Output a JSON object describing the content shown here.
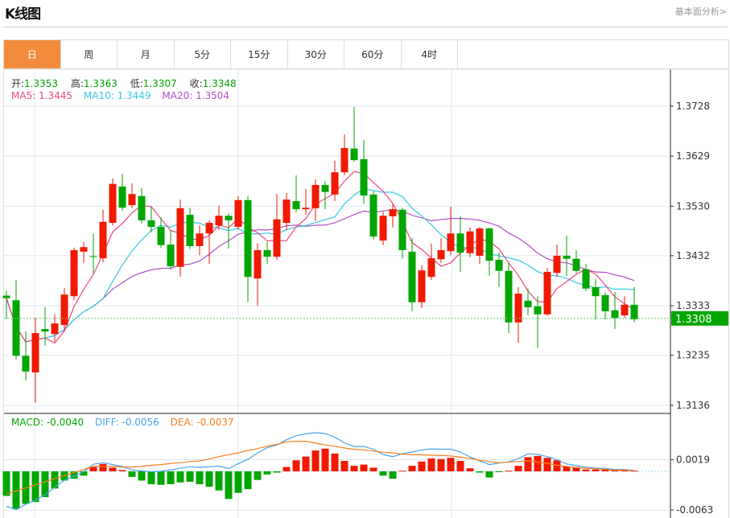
{
  "header": {
    "title": "K线图",
    "link": "基本面分析>"
  },
  "tabs": [
    {
      "label": "日",
      "active": true
    },
    {
      "label": "周"
    },
    {
      "label": "月"
    },
    {
      "label": "5分"
    },
    {
      "label": "15分"
    },
    {
      "label": "30分"
    },
    {
      "label": "60分"
    },
    {
      "label": "4时"
    }
  ],
  "ohlc_info": {
    "open_label": "开:",
    "open": "1.3353",
    "high_label": "高:",
    "high": "1.3363",
    "low_label": "低:",
    "low": "1.3307",
    "close_label": "收:",
    "close": "1.3348"
  },
  "ma_info": {
    "ma5": "MA5: 1.3445",
    "ma10": "MA10: 1.3449",
    "ma20": "MA20: 1.3504"
  },
  "macd_info": {
    "macd": "MACD: -0.0040",
    "diff": "DIFF: -0.0056",
    "dea": "DEA: -0.0037"
  },
  "colors": {
    "up": "#f01a00",
    "down": "#00a600",
    "ma5": "#f0467a",
    "ma10": "#38c8e0",
    "ma20": "#b050c8",
    "diff": "#4aa3f0",
    "dea": "#f57e20",
    "active_tab": "#f28c3c"
  },
  "chart_data": [
    {
      "type": "candlestick",
      "ylim": [
        1.312,
        1.3801
      ],
      "yticks": [
        "1.3728",
        "1.3629",
        "1.3530",
        "1.3432",
        "1.3333",
        "1.3235",
        "1.3136"
      ],
      "current_price": "1.3308",
      "ohlc": [
        [
          1.3353,
          1.3363,
          1.3307,
          1.3348
        ],
        [
          1.3344,
          1.3384,
          1.3227,
          1.3234
        ],
        [
          1.3234,
          1.3282,
          1.3185,
          1.3203
        ],
        [
          1.3201,
          1.3309,
          1.3141,
          1.3279
        ],
        [
          1.3287,
          1.333,
          1.3254,
          1.3282
        ],
        [
          1.3277,
          1.3316,
          1.3262,
          1.3298
        ],
        [
          1.3295,
          1.3368,
          1.3282,
          1.3355
        ],
        [
          1.3352,
          1.3448,
          1.3344,
          1.3443
        ],
        [
          1.344,
          1.3459,
          1.3418,
          1.3449
        ],
        [
          1.3431,
          1.3476,
          1.3397,
          1.343
        ],
        [
          1.3427,
          1.3523,
          1.3419,
          1.3499
        ],
        [
          1.3497,
          1.3585,
          1.3492,
          1.3574
        ],
        [
          1.3569,
          1.3594,
          1.3521,
          1.3527
        ],
        [
          1.3532,
          1.3575,
          1.3526,
          1.3554
        ],
        [
          1.355,
          1.3566,
          1.3496,
          1.3502
        ],
        [
          1.3502,
          1.3529,
          1.3478,
          1.3489
        ],
        [
          1.3489,
          1.3508,
          1.3448,
          1.3453
        ],
        [
          1.3454,
          1.3483,
          1.3405,
          1.3411
        ],
        [
          1.341,
          1.3543,
          1.339,
          1.3526
        ],
        [
          1.3513,
          1.3527,
          1.3445,
          1.3451
        ],
        [
          1.3451,
          1.3492,
          1.3433,
          1.3476
        ],
        [
          1.3476,
          1.3502,
          1.3416,
          1.3497
        ],
        [
          1.3492,
          1.3531,
          1.3483,
          1.3511
        ],
        [
          1.3511,
          1.3516,
          1.3446,
          1.3502
        ],
        [
          1.3489,
          1.355,
          1.3484,
          1.3542
        ],
        [
          1.3542,
          1.355,
          1.334,
          1.339
        ],
        [
          1.3387,
          1.3457,
          1.3333,
          1.3443
        ],
        [
          1.3443,
          1.3459,
          1.3416,
          1.343
        ],
        [
          1.343,
          1.3554,
          1.3424,
          1.3504
        ],
        [
          1.3497,
          1.3556,
          1.3483,
          1.3543
        ],
        [
          1.354,
          1.3591,
          1.3518,
          1.3524
        ],
        [
          1.3524,
          1.3564,
          1.3513,
          1.3527
        ],
        [
          1.3526,
          1.3583,
          1.35,
          1.3572
        ],
        [
          1.3572,
          1.358,
          1.3524,
          1.3558
        ],
        [
          1.3553,
          1.362,
          1.354,
          1.3597
        ],
        [
          1.3597,
          1.3672,
          1.3591,
          1.3645
        ],
        [
          1.3644,
          1.3726,
          1.3618,
          1.3621
        ],
        [
          1.3623,
          1.3661,
          1.3534,
          1.3551
        ],
        [
          1.3553,
          1.3559,
          1.3464,
          1.347
        ],
        [
          1.3462,
          1.3519,
          1.3453,
          1.3511
        ],
        [
          1.351,
          1.3535,
          1.3488,
          1.3524
        ],
        [
          1.3523,
          1.3527,
          1.3426,
          1.3443
        ],
        [
          1.344,
          1.3467,
          1.3322,
          1.334
        ],
        [
          1.334,
          1.3413,
          1.3328,
          1.3403
        ],
        [
          1.339,
          1.3456,
          1.3384,
          1.3427
        ],
        [
          1.3425,
          1.3467,
          1.3418,
          1.3443
        ],
        [
          1.3441,
          1.3529,
          1.3433,
          1.3476
        ],
        [
          1.3476,
          1.351,
          1.34,
          1.3438
        ],
        [
          1.3437,
          1.3488,
          1.3429,
          1.348
        ],
        [
          1.3432,
          1.3489,
          1.3416,
          1.3486
        ],
        [
          1.3486,
          1.3488,
          1.3392,
          1.3422
        ],
        [
          1.3424,
          1.3438,
          1.337,
          1.3402
        ],
        [
          1.3402,
          1.3419,
          1.3279,
          1.33
        ],
        [
          1.33,
          1.337,
          1.326,
          1.3357
        ],
        [
          1.3343,
          1.3367,
          1.3314,
          1.333
        ],
        [
          1.3332,
          1.3352,
          1.3249,
          1.3316
        ],
        [
          1.3316,
          1.3408,
          1.3313,
          1.34
        ],
        [
          1.3398,
          1.3454,
          1.339,
          1.3432
        ],
        [
          1.3432,
          1.3472,
          1.3392,
          1.3426
        ],
        [
          1.3426,
          1.3443,
          1.3397,
          1.3402
        ],
        [
          1.3405,
          1.3416,
          1.3362,
          1.3367
        ],
        [
          1.337,
          1.3386,
          1.3306,
          1.3352
        ],
        [
          1.3354,
          1.336,
          1.3306,
          1.3322
        ],
        [
          1.3324,
          1.336,
          1.3287,
          1.3309
        ],
        [
          1.3314,
          1.3352,
          1.3309,
          1.3335
        ],
        [
          1.3335,
          1.337,
          1.33,
          1.3306
        ]
      ]
    },
    {
      "type": "macd",
      "ylim": [
        -0.0076,
        0.0093
      ],
      "yticks": [
        "0.0019",
        "-0.0063"
      ],
      "macd": [
        -0.004,
        -0.0061,
        -0.0053,
        -0.005,
        -0.0042,
        -0.0028,
        -0.0015,
        -0.0012,
        -0.0007,
        0.0007,
        0.0012,
        0.0006,
        0.0002,
        -0.0009,
        -0.0015,
        -0.0021,
        -0.0022,
        -0.0021,
        -0.0018,
        -0.0017,
        -0.0021,
        -0.0025,
        -0.0031,
        -0.0045,
        -0.0035,
        -0.0029,
        -0.0014,
        -0.0005,
        -0.0002,
        0.0007,
        0.0018,
        0.0024,
        0.0034,
        0.0037,
        0.0029,
        0.0017,
        0.0009,
        0.0011,
        0.0006,
        -0.0007,
        -0.0012,
        0.0001,
        0.0009,
        0.0016,
        0.0021,
        0.002,
        0.0022,
        0.0017,
        0.0005,
        -0.0002,
        -0.001,
        -0.0001,
        0.0001,
        0.0009,
        0.0023,
        0.0025,
        0.0022,
        0.0018,
        0.0008,
        0.0007,
        0.0003,
        0.0003,
        0.0004,
        0.0002,
        0.0002,
        0.0001
      ],
      "dea": [
        -0.0037,
        -0.0032,
        -0.0027,
        -0.0022,
        -0.0017,
        -0.0012,
        -0.0007,
        -0.0002,
        0.0003,
        0.0008,
        0.0008,
        0.0008,
        0.0007,
        0.0007,
        0.0008,
        0.001,
        0.0011,
        0.0013,
        0.0014,
        0.0016,
        0.0017,
        0.002,
        0.0024,
        0.0027,
        0.003,
        0.0034,
        0.0037,
        0.0041,
        0.0044,
        0.0048,
        0.0049,
        0.0049,
        0.0046,
        0.0043,
        0.0041,
        0.0038,
        0.0036,
        0.0035,
        0.0033,
        0.0031,
        0.003,
        0.0028,
        0.0027,
        0.0027,
        0.0026,
        0.0026,
        0.0025,
        0.0023,
        0.0021,
        0.0018,
        0.0016,
        0.0014,
        0.0015,
        0.0016,
        0.0017,
        0.0015,
        0.0013,
        0.001,
        0.0008,
        0.0006,
        0.0005,
        0.0004,
        0.0003,
        0.0002,
        0.0002,
        0.0001
      ]
    }
  ]
}
